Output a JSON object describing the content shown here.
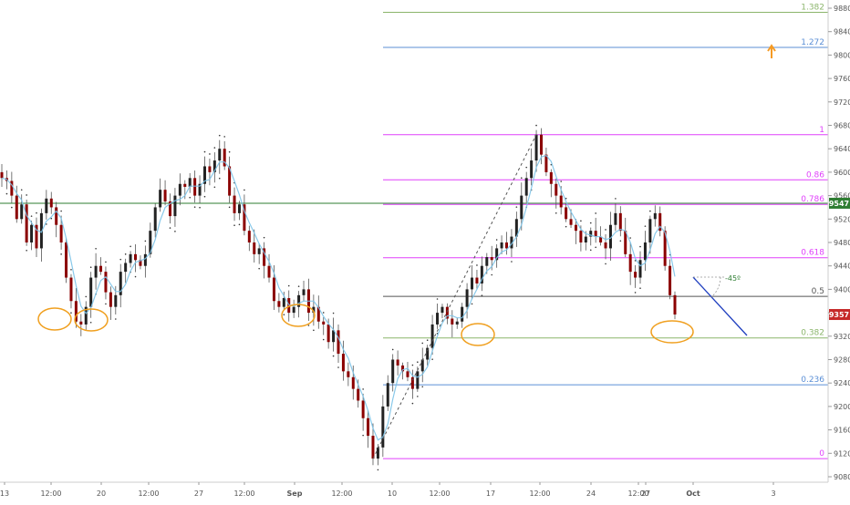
{
  "chart_data": {
    "type": "candlestick",
    "title": "",
    "xlabel": "",
    "ylabel": "",
    "ylim": [
      9080,
      9880
    ],
    "y_ticks": [
      9080,
      9120,
      9160,
      9200,
      9240,
      9280,
      9320,
      9360,
      9400,
      9440,
      9480,
      9520,
      9560,
      9600,
      9640,
      9680,
      9720,
      9760,
      9800,
      9840,
      9880
    ],
    "x_tick_labels": [
      "13",
      "12:00",
      "20",
      "12:00",
      "27",
      "12:00",
      "Sep",
      "12:00",
      "10",
      "12:00",
      "17",
      "12:00",
      "24",
      "12:00",
      "27",
      "Oct",
      "3"
    ],
    "fib_levels": [
      {
        "label": "0",
        "value": 9111,
        "color": "#e040fb"
      },
      {
        "label": "0.236",
        "value": 9237,
        "color": "#5b8fd6"
      },
      {
        "label": "0.382",
        "value": 9317,
        "color": "#8bb56b"
      },
      {
        "label": "0.5",
        "value": 9388,
        "color": "#555555"
      },
      {
        "label": "0.618",
        "value": 9454,
        "color": "#e040fb"
      },
      {
        "label": "0.786",
        "value": 9545,
        "color": "#e040fb"
      },
      {
        "label": "0.86",
        "value": 9587,
        "color": "#e040fb"
      },
      {
        "label": "1",
        "value": 9664,
        "color": "#e040fb"
      },
      {
        "label": "1.272",
        "value": 9813,
        "color": "#5b8fd6"
      },
      {
        "label": "1.382",
        "value": 9873,
        "color": "#8bb56b"
      }
    ],
    "support_line": {
      "value": 9547,
      "label": "9547",
      "color": "#2e7d32"
    },
    "last_price": {
      "value": 9357,
      "label": "9357",
      "color": "#c62828"
    },
    "angle_annotation": "-45º",
    "price_path": [
      [
        9590,
        9585,
        9560,
        9520,
        9545,
        9480,
        9510,
        9470,
        9530,
        9555,
        9540,
        9510,
        9480,
        9420,
        9380,
        9345,
        9340,
        9370,
        9420,
        9440,
        9430,
        9395,
        9370,
        9390,
        9430,
        9445,
        9460,
        9450,
        9440,
        9460,
        9500,
        9540,
        9570,
        9550,
        9525,
        9560,
        9580,
        9575,
        9590,
        9560,
        9580,
        9610,
        9600,
        9620,
        9640,
        9610,
        9560,
        9530,
        9545,
        9500,
        9480,
        9460,
        9470,
        9440,
        9420,
        9380,
        9370,
        9385,
        9360,
        9370,
        9390,
        9400,
        9360,
        9370,
        9345,
        9340,
        9310,
        9330,
        9290,
        9260,
        9250,
        9230,
        9210,
        9180,
        9150,
        9111,
        9130,
        9200,
        9240,
        9280,
        9270,
        9260,
        9250,
        9230,
        9260,
        9280,
        9300,
        9340,
        9360,
        9370,
        9350,
        9340,
        9345,
        9370,
        9400,
        9420,
        9410,
        9440,
        9455,
        9450,
        9470,
        9480,
        9470,
        9490,
        9520,
        9560,
        9590,
        9620,
        9664,
        9630,
        9600,
        9580,
        9560,
        9540,
        9520,
        9510,
        9500,
        9480,
        9490,
        9500,
        9490,
        9480,
        9470,
        9510,
        9530,
        9500,
        9460,
        9430,
        9420,
        9450,
        9480,
        9520,
        9530,
        9500,
        9440,
        9390,
        9357
      ]
    ]
  }
}
